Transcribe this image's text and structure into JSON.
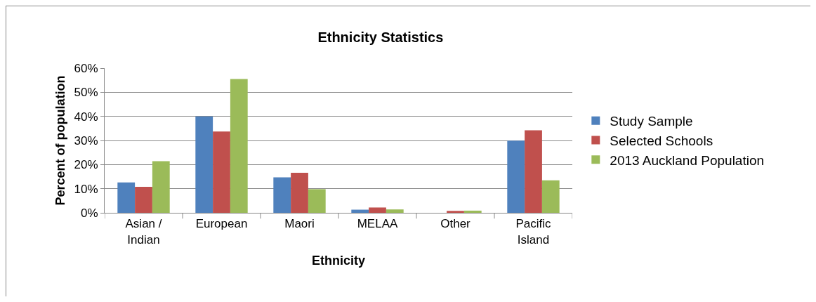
{
  "chart_data": {
    "type": "bar",
    "title": "Ethnicity Statistics",
    "xlabel": "Ethnicity",
    "ylabel": "Percent of population",
    "categories": [
      "Asian / Indian",
      "European",
      "Maori",
      "MELAA",
      "Other",
      "Pacific Island"
    ],
    "series": [
      {
        "name": "Study Sample",
        "color": "#4f81bd",
        "values": [
          12.6,
          40,
          14.7,
          1.3,
          null,
          29.9
        ]
      },
      {
        "name": "Selected Schools",
        "color": "#c0504d",
        "values": [
          10.8,
          33.7,
          16.6,
          2.2,
          0.8,
          34.2
        ]
      },
      {
        "name": "2013 Auckland Population",
        "color": "#9bbb59",
        "values": [
          21.4,
          55.5,
          9.8,
          1.4,
          0.9,
          13.5
        ]
      }
    ],
    "ylim": [
      0,
      60
    ],
    "yticks": [
      {
        "value": 0,
        "label": "0%"
      },
      {
        "value": 10,
        "label": "10%"
      },
      {
        "value": 20,
        "label": "20%"
      },
      {
        "value": 30,
        "label": "30%"
      },
      {
        "value": 40,
        "label": "40%"
      },
      {
        "value": 50,
        "label": "50%"
      },
      {
        "value": 60,
        "label": "60%"
      }
    ],
    "grid": "y",
    "legend": "right"
  }
}
